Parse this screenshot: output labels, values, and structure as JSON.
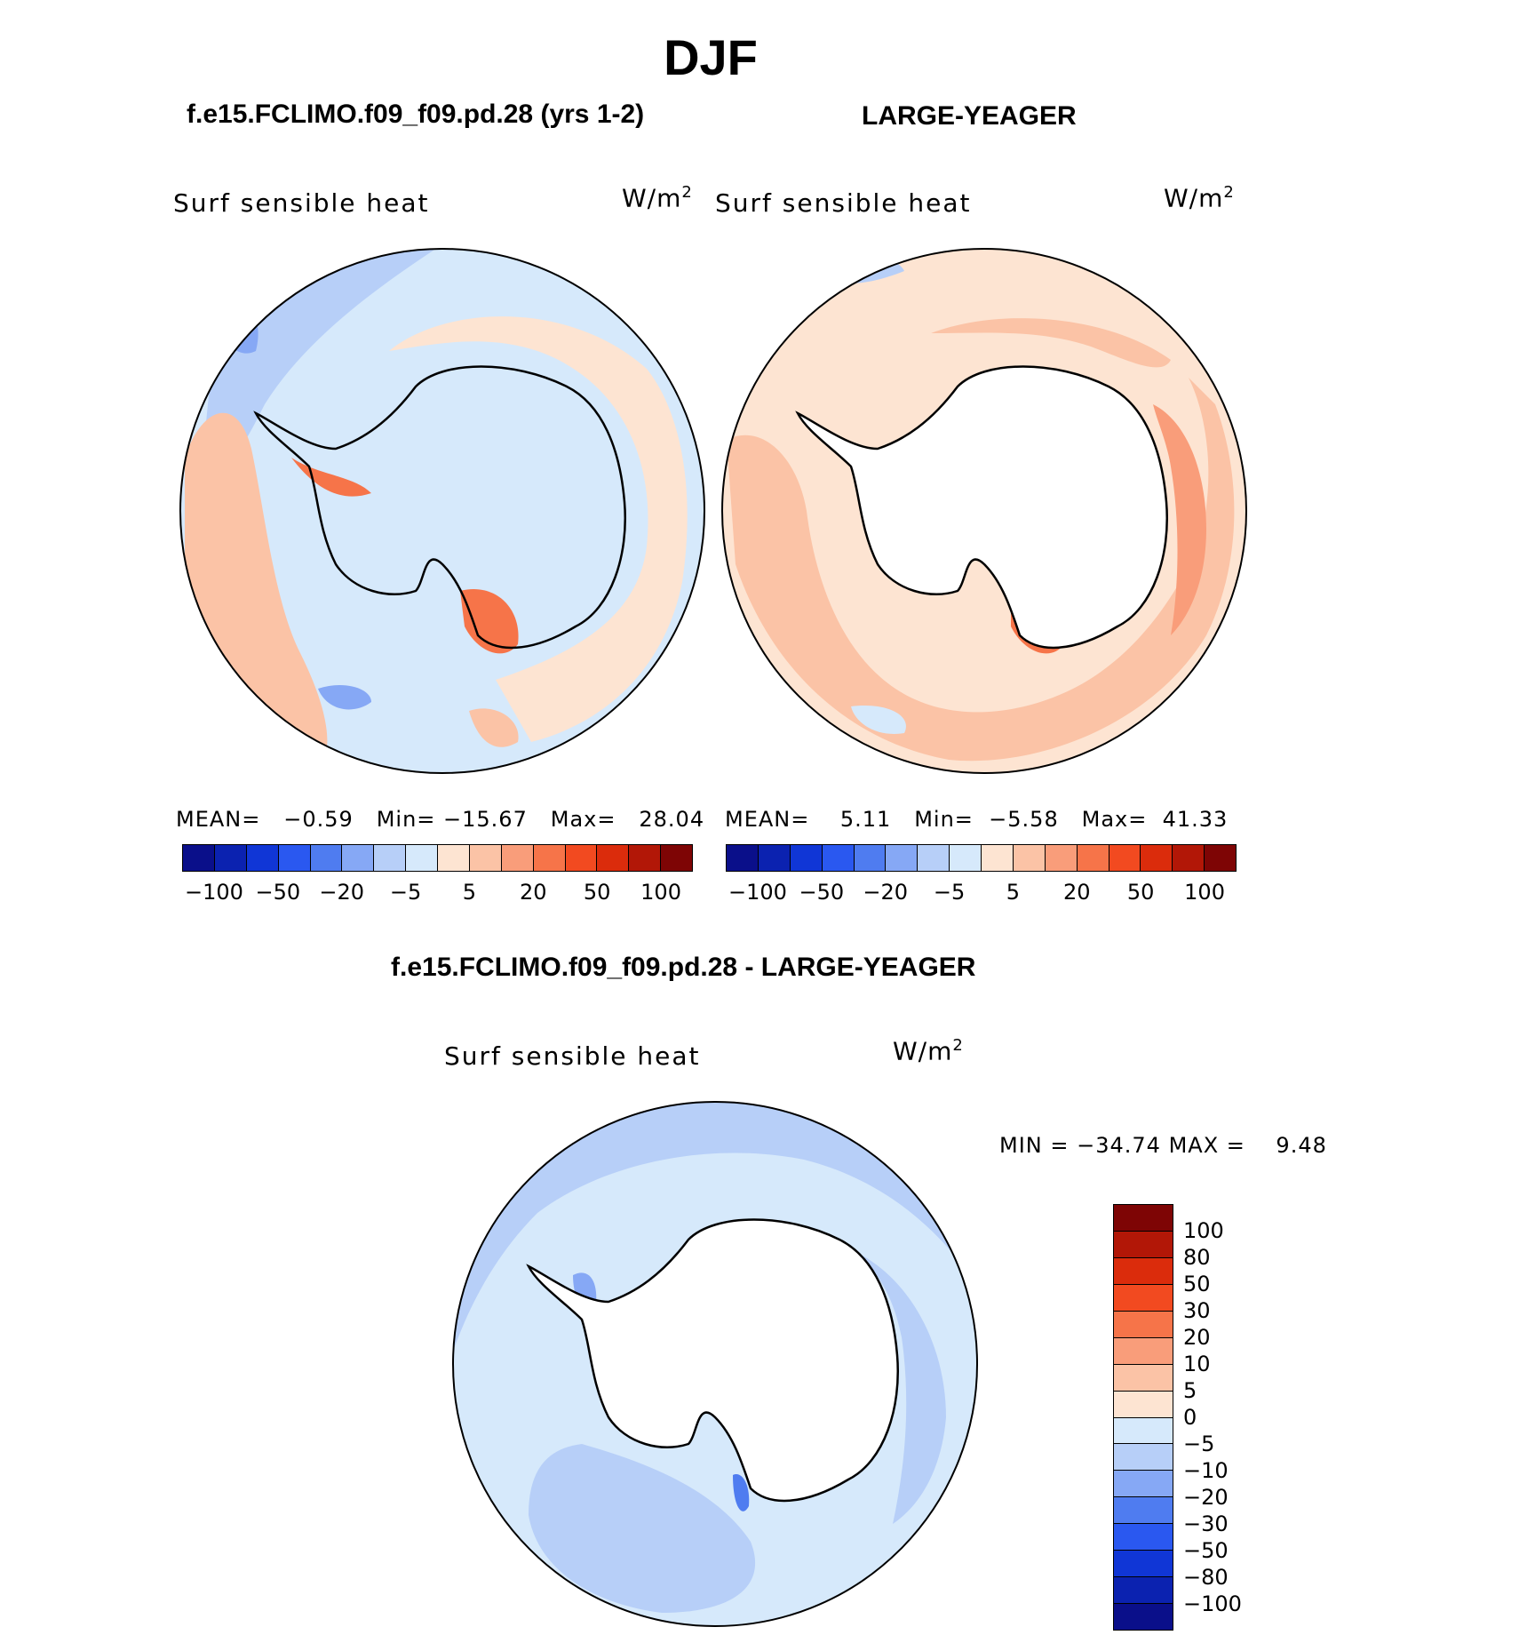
{
  "title": "DJF",
  "panels": [
    {
      "case_title": "f.e15.FCLIMO.f09_f09.pd.28 (yrs 1-2)",
      "variable": "Surf sensible heat",
      "units": "W/m",
      "units_sup": "2",
      "stats": {
        "mean_label": "MEAN=",
        "mean": "−0.59",
        "min_label": "Min=",
        "min": "−15.67",
        "max_label": "Max=",
        "max": "28.04"
      },
      "base_color": "#d6e9fb"
    },
    {
      "case_title": "LARGE-YEAGER",
      "variable": "Surf sensible heat",
      "units": "W/m",
      "units_sup": "2",
      "stats": {
        "mean_label": "MEAN=",
        "mean": "5.11",
        "min_label": "Min=",
        "min": "−5.58",
        "max_label": "Max=",
        "max": "41.33"
      },
      "base_color": "#fde4d2"
    }
  ],
  "difference": {
    "title": "f.e15.FCLIMO.f09_f09.pd.28 - LARGE-YEAGER",
    "variable": "Surf sensible heat",
    "units": "W/m",
    "units_sup": "2",
    "min_label": "MIN =",
    "min": "−34.74",
    "max_label": "MAX =",
    "max": "9.48",
    "base_color": "#d6e9fb"
  },
  "top_colorbar": {
    "colors": [
      "#0a0f8a",
      "#0b22b0",
      "#1036d6",
      "#2a58f0",
      "#4f7cf0",
      "#86a8f5",
      "#b7cff8",
      "#d6e9fb",
      "#fde4d2",
      "#fbc3a6",
      "#f99d7a",
      "#f67449",
      "#f24a20",
      "#db2c0c",
      "#b21707",
      "#7e0505"
    ],
    "tick_labels": [
      "−100",
      "−50",
      "−20",
      "−5",
      "5",
      "20",
      "50",
      "100"
    ]
  },
  "diff_colorbar": {
    "colors_top_to_bottom": [
      "#7e0505",
      "#b21707",
      "#db2c0c",
      "#f24a20",
      "#f67449",
      "#f99d7a",
      "#fbc3a6",
      "#fde4d2",
      "#d6e9fb",
      "#b7cff8",
      "#86a8f5",
      "#4f7cf0",
      "#2a58f0",
      "#1036d6",
      "#0b22b0",
      "#0a0f8a"
    ],
    "tick_labels": [
      "100",
      "80",
      "50",
      "30",
      "20",
      "10",
      "5",
      "0",
      "−5",
      "−10",
      "−20",
      "−30",
      "−50",
      "−80",
      "−100"
    ]
  }
}
